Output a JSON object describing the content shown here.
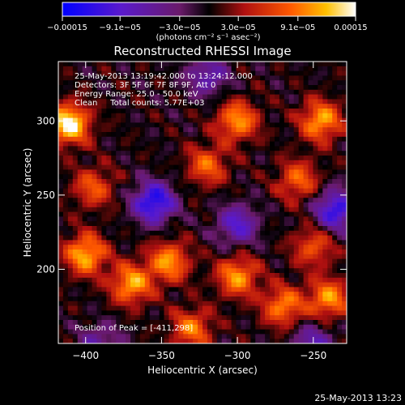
{
  "chart_data": {
    "type": "heatmap",
    "title": "Reconstructed RHESSI Image",
    "xlabel": "Heliocentric X (arcsec)",
    "ylabel": "Heliocentric Y (arcsec)",
    "xlim": [
      -418,
      -228
    ],
    "ylim": [
      150,
      340
    ],
    "xticks": [
      -400,
      -350,
      -300,
      -250
    ],
    "yticks": [
      200,
      250,
      300
    ],
    "xtick_labels": [
      "−400",
      "−350",
      "−300",
      "−250"
    ],
    "ytick_labels": [
      "200",
      "250",
      "300"
    ],
    "colorbar": {
      "min": -0.00015,
      "max": 0.00015,
      "ticks": [
        -0.00015,
        -9.1e-05,
        -3e-05,
        3e-05,
        9.1e-05,
        0.00015
      ],
      "tick_labels": [
        "−0.00015",
        "−9.1e−05",
        "−3.0e−05",
        "3.0e−05",
        "9.1e−05",
        "0.00015"
      ],
      "unit_text": "(photons cm⁻² s⁻¹ asec⁻²)"
    },
    "annotations": [
      "25-May-2013 13:19:42.000 to 13:24:12.000",
      "Detectors: 3F 5F 6F 7F 8F 9F, Att 0",
      "Energy Range: 25.0 - 50.0 keV",
      "Clean     Total counts: 5.77E+03"
    ],
    "peak_label": "Position of Peak = [-411,298]",
    "peak_position": [
      -411,
      298
    ],
    "grid": false
  },
  "footer_timestamp": "25-May-2013 13:23"
}
